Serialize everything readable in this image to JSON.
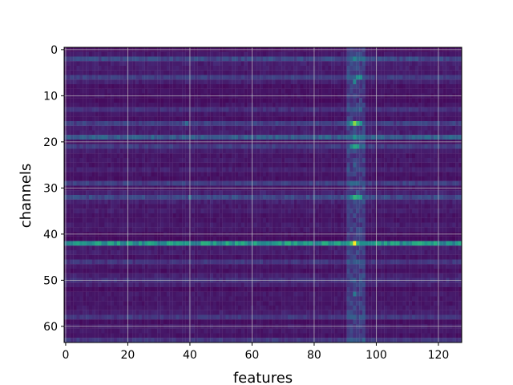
{
  "chart_data": {
    "type": "heatmap",
    "xlabel": "features",
    "ylabel": "channels",
    "x_range": [
      0,
      128
    ],
    "y_range": [
      0,
      64
    ],
    "y_inverted": true,
    "xticks": [
      0,
      20,
      40,
      60,
      80,
      100,
      120
    ],
    "yticks": [
      0,
      10,
      20,
      30,
      40,
      50,
      60
    ],
    "grid": true,
    "colormap": [
      "#440154",
      "#472d7b",
      "#3b528b",
      "#2c728e",
      "#21918c",
      "#28ae80",
      "#5ec962",
      "#addc30",
      "#fde725"
    ],
    "value_range": [
      0,
      1
    ],
    "baseline_rows": [
      {
        "row": 2,
        "level": 0.2
      },
      {
        "row": 6,
        "level": 0.16
      },
      {
        "row": 13,
        "level": 0.12
      },
      {
        "row": 16,
        "level": 0.17
      },
      {
        "row": 19,
        "level": 0.28
      },
      {
        "row": 21,
        "level": 0.16
      },
      {
        "row": 29,
        "level": 0.17
      },
      {
        "row": 32,
        "level": 0.2
      },
      {
        "row": 42,
        "level": 0.5
      },
      {
        "row": 46,
        "level": 0.14
      },
      {
        "row": 50,
        "level": 0.12
      },
      {
        "row": 58,
        "level": 0.14
      },
      {
        "row": 63,
        "level": 0.15
      }
    ],
    "hotspots": [
      {
        "col": 93,
        "row": 16,
        "value": 0.82
      },
      {
        "col": 94,
        "row": 16,
        "value": 0.65
      },
      {
        "col": 92,
        "row": 16,
        "value": 0.55
      },
      {
        "col": 95,
        "row": 16,
        "value": 0.5
      },
      {
        "col": 93,
        "row": 21,
        "value": 0.6
      },
      {
        "col": 94,
        "row": 21,
        "value": 0.55
      },
      {
        "col": 92,
        "row": 21,
        "value": 0.45
      },
      {
        "col": 93,
        "row": 32,
        "value": 0.65
      },
      {
        "col": 94,
        "row": 32,
        "value": 0.6
      },
      {
        "col": 95,
        "row": 32,
        "value": 0.55
      },
      {
        "col": 92,
        "row": 32,
        "value": 0.45
      },
      {
        "col": 93,
        "row": 42,
        "value": 1.0
      },
      {
        "col": 92,
        "row": 42,
        "value": 0.7
      },
      {
        "col": 94,
        "row": 42,
        "value": 0.65
      },
      {
        "col": 94,
        "row": 6,
        "value": 0.5
      },
      {
        "col": 95,
        "row": 6,
        "value": 0.5
      },
      {
        "col": 93,
        "row": 7,
        "value": 0.45
      },
      {
        "col": 93,
        "row": 2,
        "value": 0.45
      },
      {
        "col": 39,
        "row": 42,
        "value": 0.55
      },
      {
        "col": 38,
        "row": 42,
        "value": 0.5
      },
      {
        "col": 40,
        "row": 42,
        "value": 0.5
      },
      {
        "col": 39,
        "row": 16,
        "value": 0.35
      },
      {
        "col": 40,
        "row": 32,
        "value": 0.35
      },
      {
        "col": 93,
        "row": 53,
        "value": 0.4
      },
      {
        "col": 92,
        "row": 29,
        "value": 0.35
      },
      {
        "col": 93,
        "row": 25,
        "value": 0.3
      },
      {
        "col": 94,
        "row": 46,
        "value": 0.3
      },
      {
        "col": 93,
        "row": 50,
        "value": 0.3
      },
      {
        "col": 2,
        "row": 42,
        "value": 0.45
      }
    ],
    "column_band": {
      "cols": [
        91,
        96
      ],
      "boost": 0.12
    }
  }
}
